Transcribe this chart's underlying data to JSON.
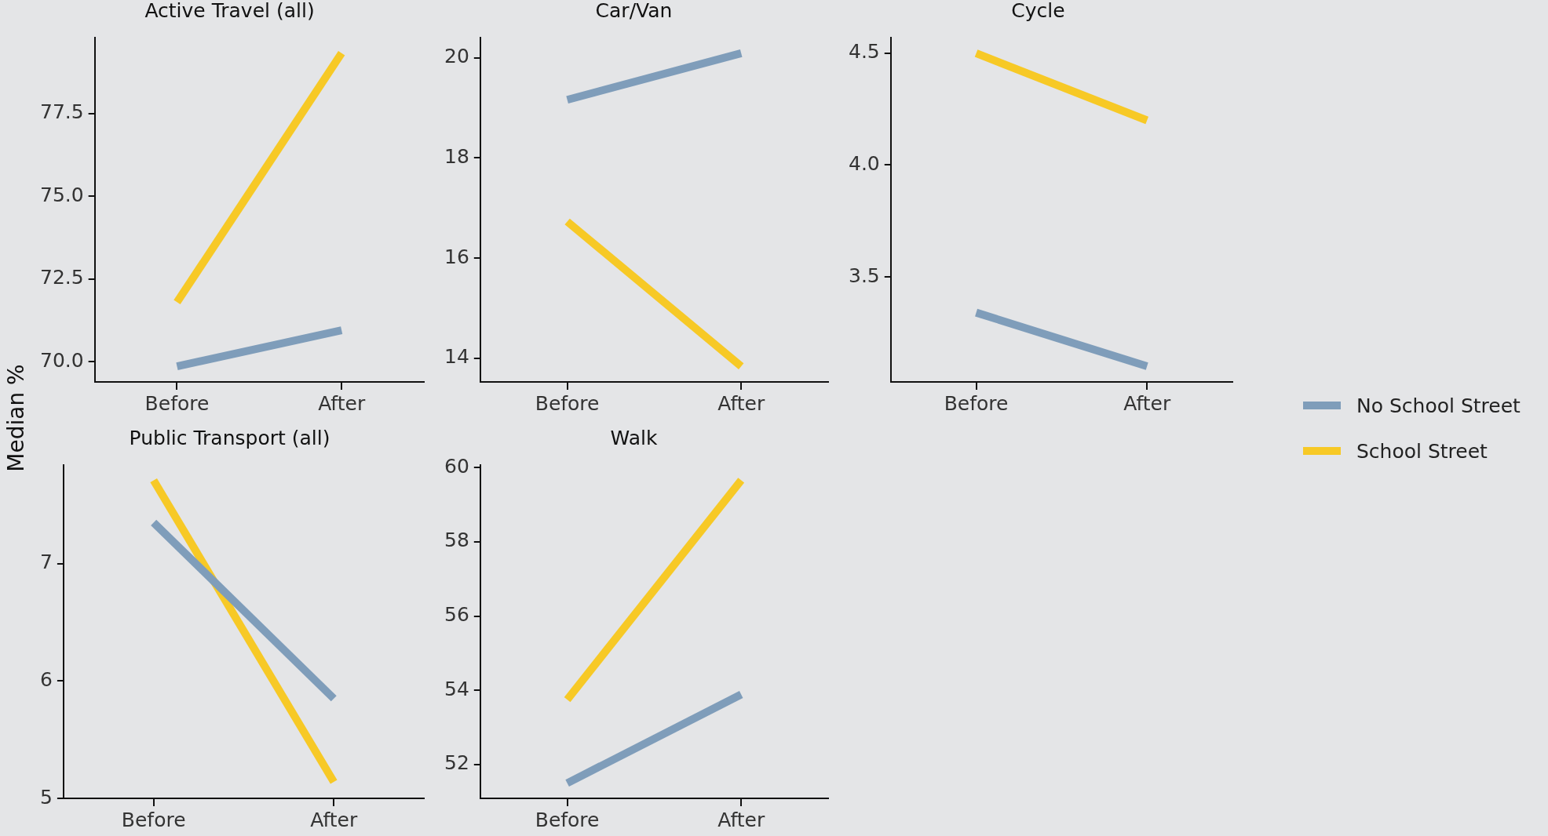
{
  "chart_data": [
    {
      "type": "line",
      "title": "Active Travel (all)",
      "ylabel": "Median %",
      "categories": [
        "Before",
        "After"
      ],
      "ylim": [
        69.39,
        79.8
      ],
      "yticks": [
        {
          "value": 70,
          "label": "70.0"
        },
        {
          "value": 72.5,
          "label": "72.5"
        },
        {
          "value": 75,
          "label": "75.0"
        },
        {
          "value": 77.5,
          "label": "77.5"
        }
      ],
      "grid": false,
      "marker": "none",
      "legend": "right",
      "series": [
        {
          "name": "No School Street",
          "color": "#7f9dba",
          "values": [
            69.86,
            70.95
          ]
        },
        {
          "name": "School Street",
          "color": "#f7c926",
          "values": [
            71.8,
            79.33
          ]
        }
      ]
    },
    {
      "type": "line",
      "title": "Car/Van",
      "categories": [
        "Before",
        "After"
      ],
      "ylim": [
        13.53,
        20.4
      ],
      "yticks": [
        14,
        16,
        18,
        20
      ],
      "grid": false,
      "marker": "none",
      "series": [
        {
          "color": "#7f9dba",
          "values": [
            19.16,
            20.09
          ]
        },
        {
          "color": "#f7c926",
          "values": [
            16.73,
            13.84
          ]
        }
      ]
    },
    {
      "type": "line",
      "title": "Cycle",
      "categories": [
        "Before",
        "After"
      ],
      "ylim": [
        3.03,
        4.57
      ],
      "yticks": [
        3.5,
        {
          "value": 4,
          "label": "4.0"
        },
        4.5
      ],
      "grid": false,
      "marker": "none",
      "series": [
        {
          "color": "#7f9dba",
          "values": [
            3.34,
            3.1
          ]
        },
        {
          "color": "#f7c926",
          "values": [
            4.5,
            4.2
          ]
        }
      ]
    },
    {
      "type": "line",
      "title": "Public Transport (all)",
      "categories": [
        "Before",
        "After"
      ],
      "ylim": [
        5,
        7.84
      ],
      "yticks": [
        5,
        6,
        7
      ],
      "grid": false,
      "marker": "none",
      "series": [
        {
          "color": "#7f9dba",
          "values": [
            7.35,
            5.85
          ]
        },
        {
          "color": "#f7c926",
          "values": [
            7.71,
            5.14
          ]
        }
      ]
    },
    {
      "type": "line",
      "title": "Walk",
      "categories": [
        "Before",
        "After"
      ],
      "ylim": [
        51.09,
        60.07
      ],
      "yticks": [
        52,
        54,
        56,
        58,
        60
      ],
      "grid": false,
      "marker": "none",
      "series": [
        {
          "color": "#7f9dba",
          "values": [
            51.5,
            53.89
          ]
        },
        {
          "color": "#f7c926",
          "values": [
            53.75,
            59.66
          ]
        }
      ]
    }
  ]
}
